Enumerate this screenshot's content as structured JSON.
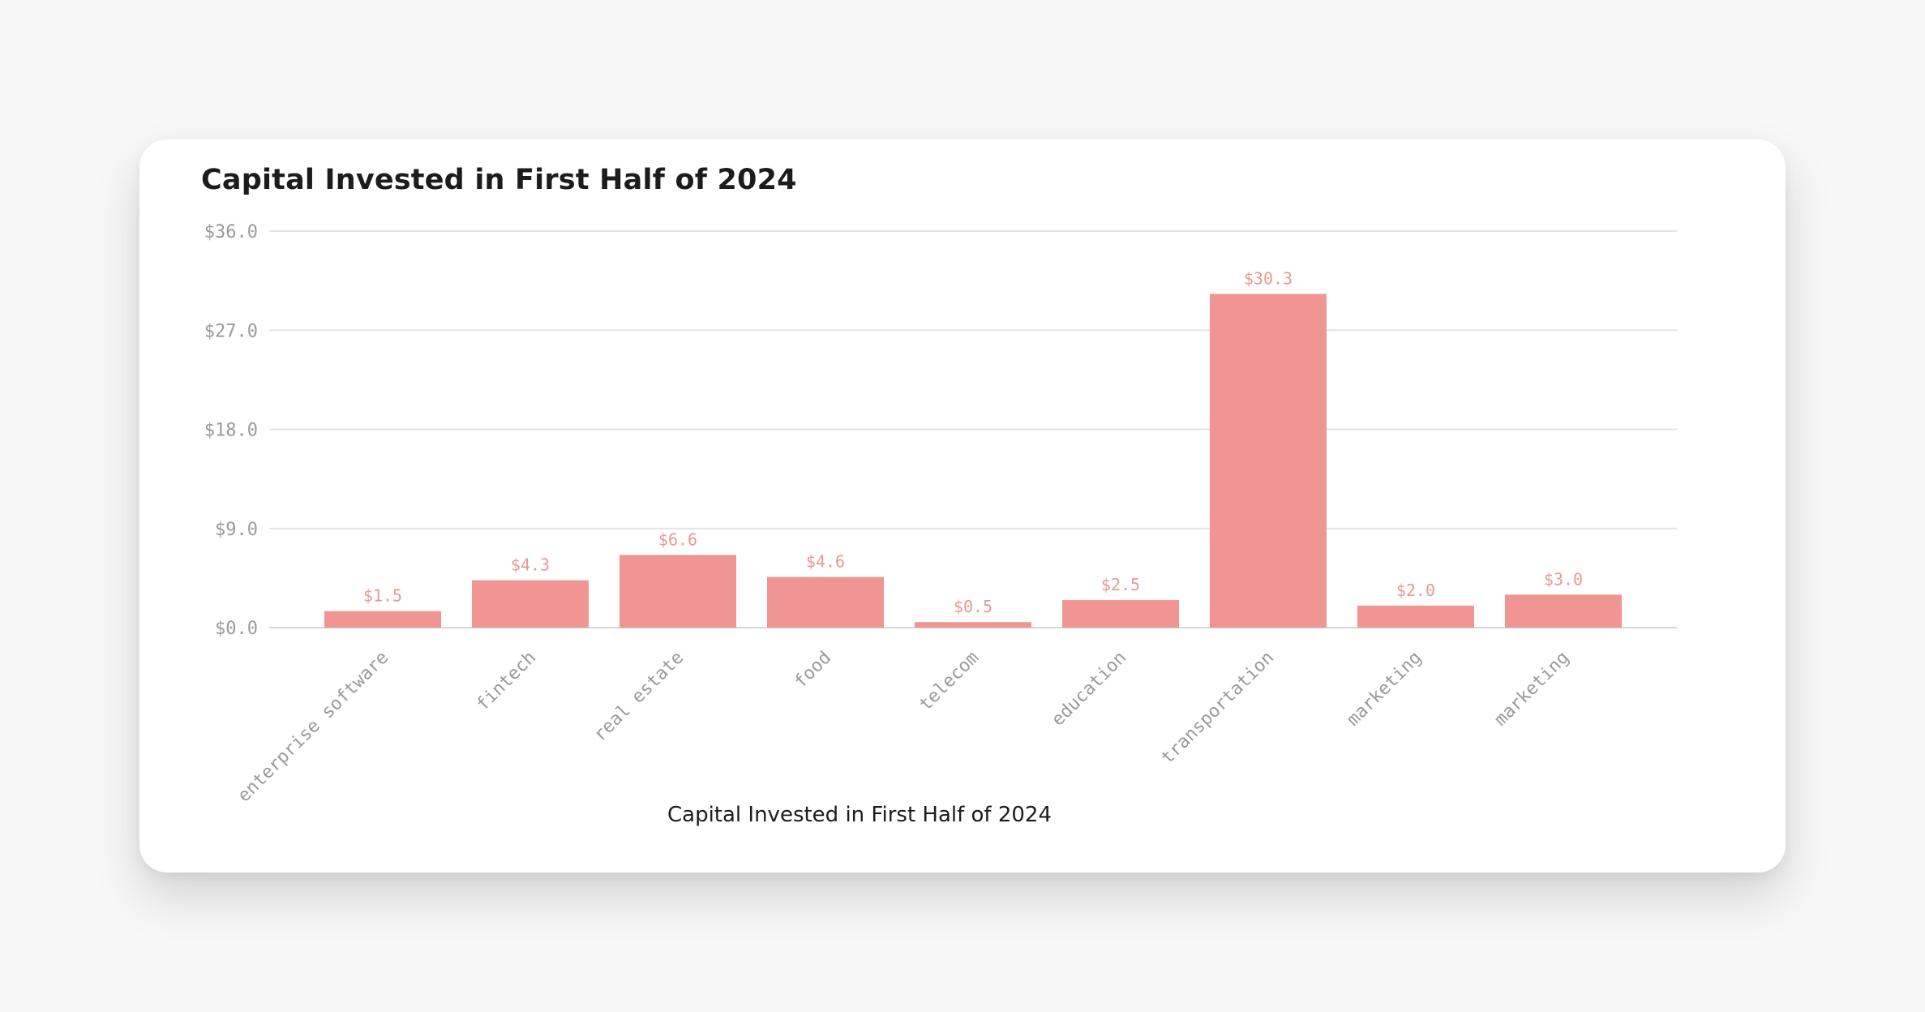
{
  "chart_data": {
    "type": "bar",
    "title": "Capital Invested in First Half of 2024",
    "xlabel": "Capital Invested in First Half of 2024",
    "ylabel": "",
    "categories": [
      "enterprise software",
      "fintech",
      "real estate",
      "food",
      "telecom",
      "education",
      "transportation",
      "marketing",
      "marketing"
    ],
    "values": [
      1.5,
      4.3,
      6.6,
      4.6,
      0.5,
      2.5,
      30.3,
      2.0,
      3.0
    ],
    "value_labels": [
      "$1.5",
      "$4.3",
      "$6.6",
      "$4.6",
      "$0.5",
      "$2.5",
      "$30.3",
      "$2.0",
      "$3.0"
    ],
    "ylim": [
      0,
      36
    ],
    "yticks": [
      0,
      9,
      18,
      27,
      36
    ],
    "ytick_labels": [
      "$0.0",
      "$9.0",
      "$18.0",
      "$27.0",
      "$36.0"
    ],
    "grid": true,
    "legend": "none",
    "bar_color": "#f09591"
  }
}
